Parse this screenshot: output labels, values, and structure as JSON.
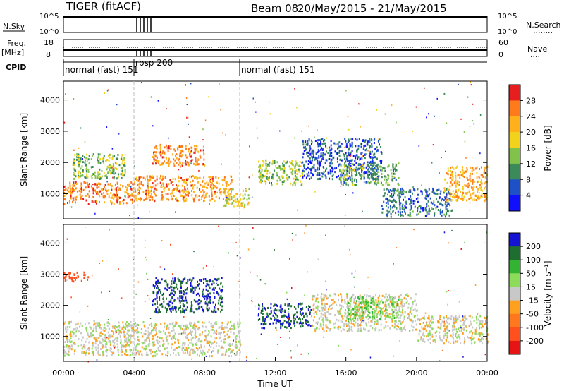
{
  "header": {
    "radar": "TIGER (fitACF)",
    "beam": "Beam 08",
    "dates": "20/May/2015 - 21/May/2015"
  },
  "top_panels": {
    "nsky_label": "N.Sky",
    "nsky_ticks": [
      "10^5",
      "10^0"
    ],
    "nsky_right_ticks": [
      "10^5",
      "10^0"
    ],
    "nsearch_label": "N.Search",
    "nsearch_line": "........",
    "freq_label": "Freq.",
    "freq_unit": "[MHz]",
    "freq_ticks": [
      "18",
      "8"
    ],
    "nave_ticks": [
      "60",
      "0"
    ],
    "nave_label": "Nave",
    "nave_line": "....",
    "cpid_label": "CPID",
    "cpid_segments": [
      {
        "name": "normal (fast) 151",
        "start_h": 0,
        "end_h": 4
      },
      {
        "name": "rbsp 200",
        "start_h": 4,
        "end_h": 10
      },
      {
        "name": "normal (fast) 151",
        "start_h": 10,
        "end_h": 24
      }
    ]
  },
  "chart_data": [
    {
      "type": "heatmap",
      "name": "power",
      "ylabel": "Slant Range [km]",
      "yticks": [
        "1000",
        "2000",
        "3000",
        "4000"
      ],
      "ylim": [
        200,
        4600
      ],
      "xlim_hours": [
        0,
        24
      ],
      "colorbar_label": "Power [dB]",
      "colorbar_ticks": [
        "28",
        "24",
        "20",
        "16",
        "12",
        "8",
        "4"
      ],
      "colorbar_colors": [
        "#e61e1e",
        "#ff7a1a",
        "#ffb01a",
        "#f2d21a",
        "#82c24a",
        "#3a8a5a",
        "#1e50c8",
        "#1010ff"
      ],
      "regions": [
        {
          "t0": 0,
          "t1": 4,
          "r0": 700,
          "r1": 1400,
          "val": 26
        },
        {
          "t0": 0.5,
          "t1": 3.5,
          "r0": 1500,
          "r1": 2300,
          "val": 14
        },
        {
          "t0": 4,
          "t1": 9.5,
          "r0": 800,
          "r1": 1600,
          "val": 24
        },
        {
          "t0": 5,
          "t1": 8,
          "r0": 1900,
          "r1": 2600,
          "val": 25
        },
        {
          "t0": 9,
          "t1": 10.5,
          "r0": 600,
          "r1": 1200,
          "val": 18
        },
        {
          "t0": 11,
          "t1": 13.5,
          "r0": 1300,
          "r1": 2100,
          "val": 14
        },
        {
          "t0": 13.5,
          "t1": 18,
          "r0": 1500,
          "r1": 2800,
          "val": 6
        },
        {
          "t0": 15.5,
          "t1": 19,
          "r0": 1300,
          "r1": 2000,
          "val": 12
        },
        {
          "t0": 18,
          "t1": 22,
          "r0": 300,
          "r1": 1200,
          "val": 8
        },
        {
          "t0": 21.5,
          "t1": 24,
          "r0": 800,
          "r1": 1900,
          "val": 22
        }
      ]
    },
    {
      "type": "heatmap",
      "name": "velocity",
      "ylabel": "Slant Range [km]",
      "yticks": [
        "1000",
        "2000",
        "3000",
        "4000"
      ],
      "ylim": [
        200,
        4600
      ],
      "xlim_hours": [
        0,
        24
      ],
      "xticks": [
        "00:00",
        "04:00",
        "08:00",
        "12:00",
        "16:00",
        "20:00",
        "00:00"
      ],
      "xlabel": "Time UT",
      "colorbar_label": "Velocity [m s⁻¹]",
      "colorbar_ticks": [
        "200",
        "100",
        "50",
        "15",
        "-15",
        "-50",
        "-100",
        "-200"
      ],
      "colorbar_colors": [
        "#1414d2",
        "#1e6e32",
        "#32b432",
        "#8cdc5a",
        "#c8c8c8",
        "#ffa01e",
        "#ff781e",
        "#ff501e",
        "#e61414"
      ],
      "regions": [
        {
          "t0": 0,
          "t1": 10,
          "r0": 400,
          "r1": 1500,
          "val": 0
        },
        {
          "t0": 0,
          "t1": 1.5,
          "r0": 2800,
          "r1": 3100,
          "val": -150
        },
        {
          "t0": 5,
          "t1": 9,
          "r0": 1800,
          "r1": 2900,
          "val": 200
        },
        {
          "t0": 11,
          "t1": 14,
          "r0": 1300,
          "r1": 2100,
          "val": 200
        },
        {
          "t0": 14,
          "t1": 20,
          "r0": 1200,
          "r1": 2400,
          "val": 0
        },
        {
          "t0": 16,
          "t1": 19,
          "r0": 1600,
          "r1": 2300,
          "val": 40
        },
        {
          "t0": 20,
          "t1": 24,
          "r0": 800,
          "r1": 1700,
          "val": 0
        }
      ]
    }
  ]
}
